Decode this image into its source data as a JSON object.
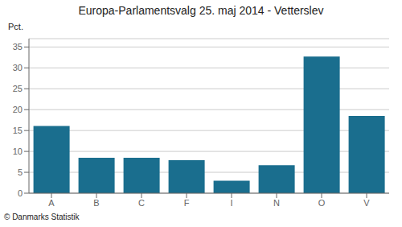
{
  "chart_data": {
    "type": "bar",
    "title": "Europa-Parlamentsvalg 25. maj 2014 - Vetterslev",
    "categories": [
      "A",
      "B",
      "C",
      "F",
      "I",
      "N",
      "O",
      "V"
    ],
    "values": [
      16.1,
      8.5,
      8.5,
      7.9,
      3.0,
      6.7,
      32.7,
      18.5
    ],
    "color": "#1a6e8e",
    "ylabel": "Pct.",
    "ylim": [
      0,
      37
    ],
    "yticks": [
      0,
      5,
      10,
      15,
      20,
      25,
      30,
      35
    ],
    "grid": true,
    "annotations": [
      "© Danmarks Statistik"
    ]
  }
}
